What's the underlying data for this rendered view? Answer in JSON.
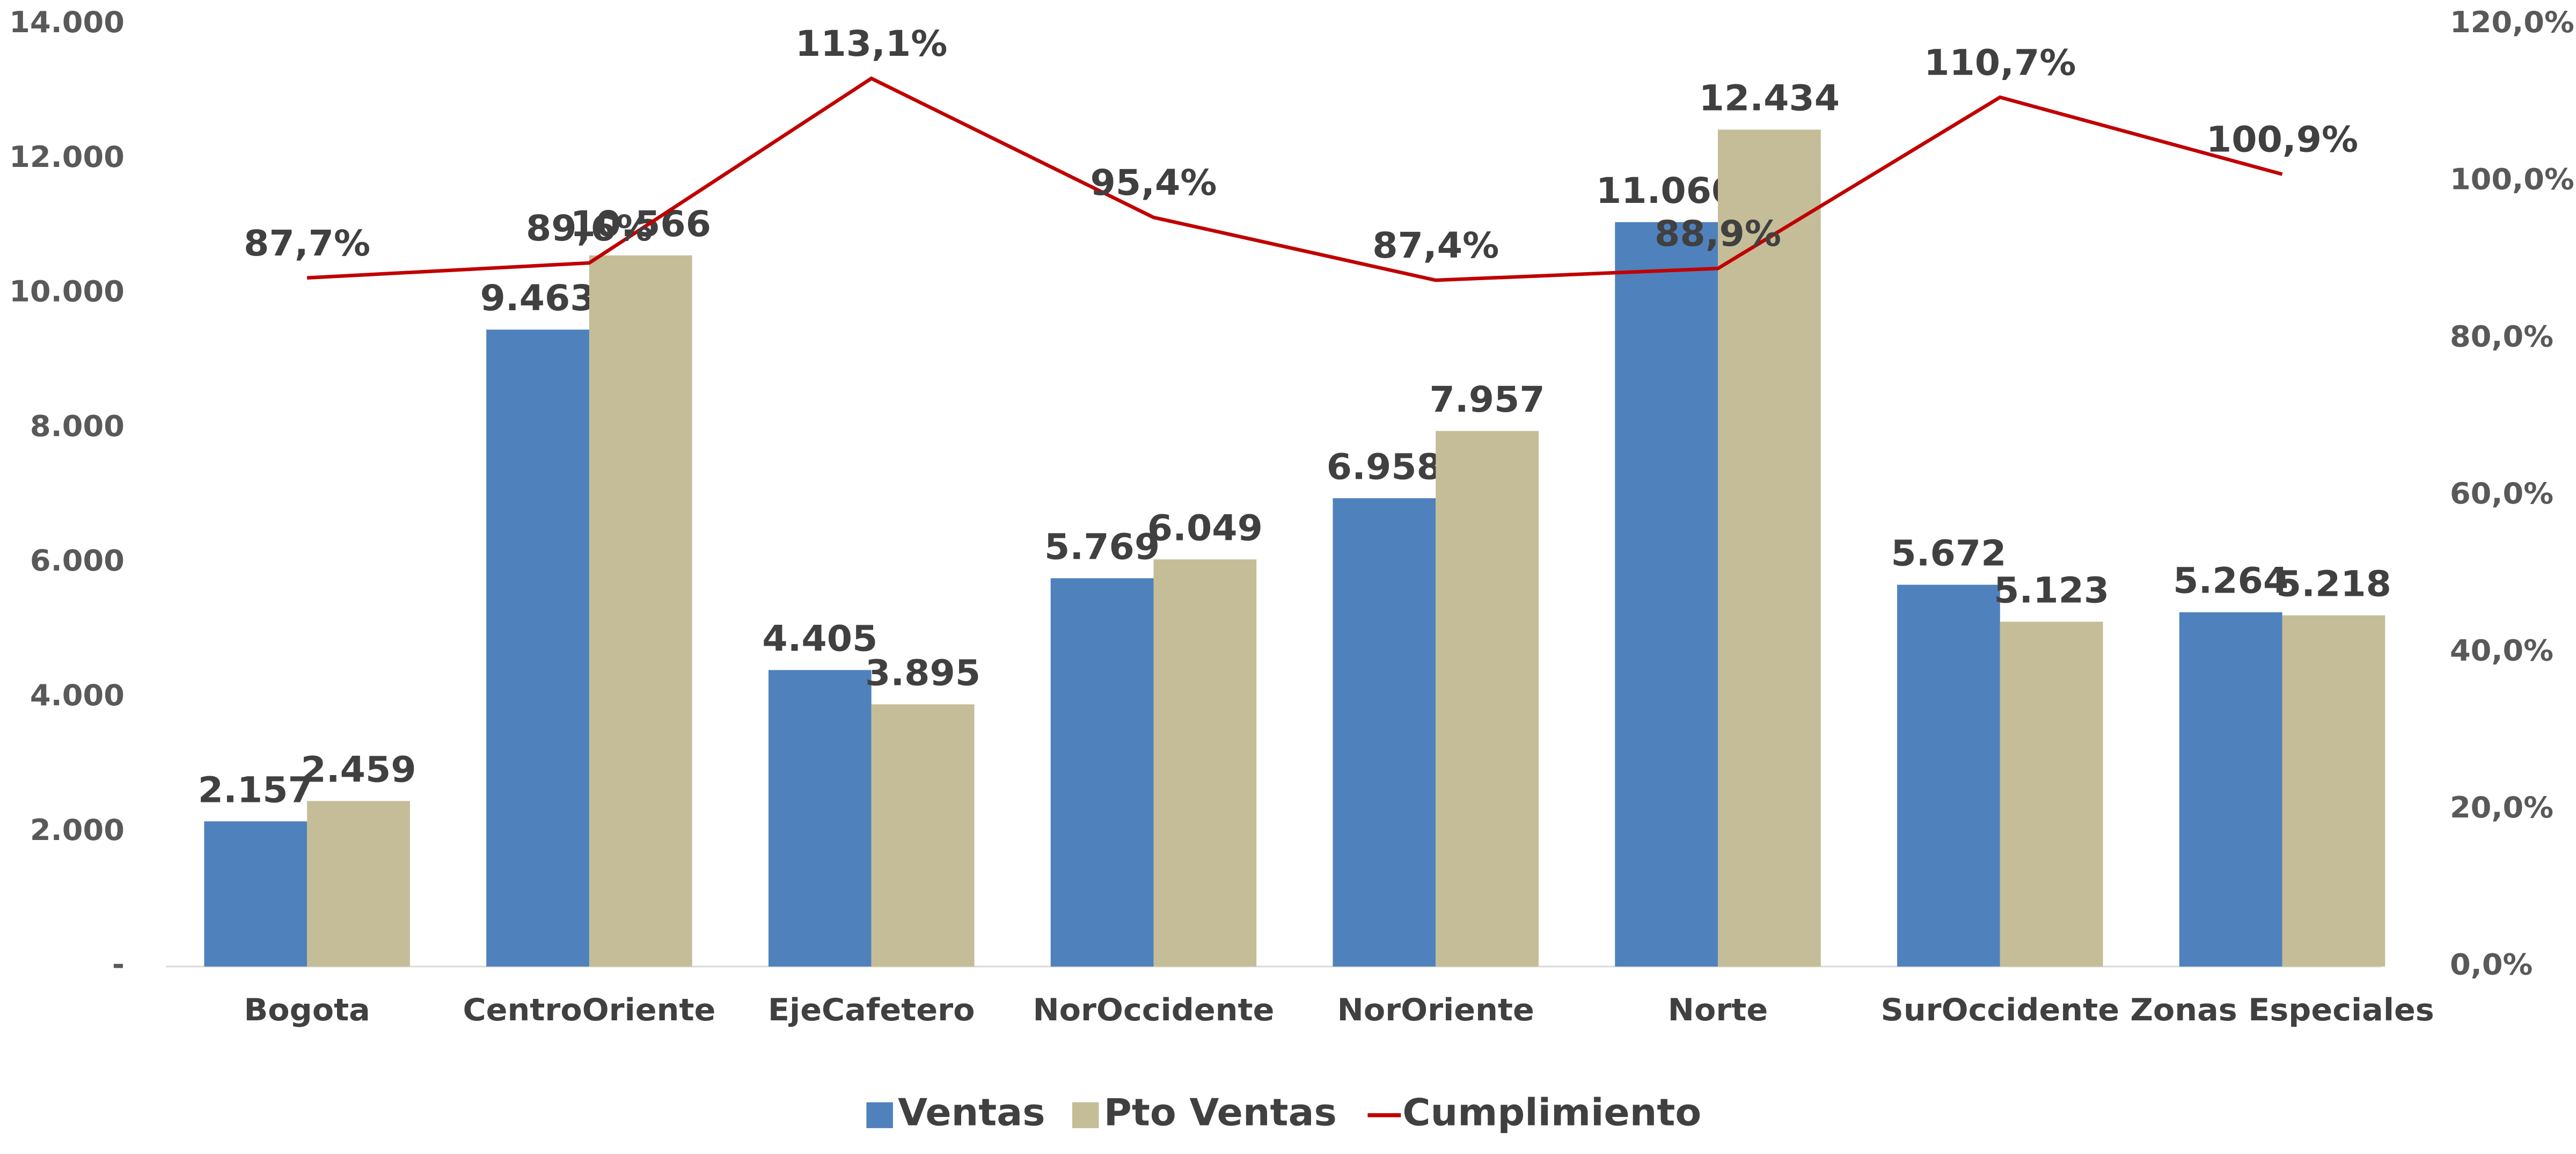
{
  "chart_data": {
    "type": "bar_line",
    "categories": [
      "Bogota",
      "CentroOriente",
      "EjeCafetero",
      "NorOccidente",
      "NorOriente",
      "Norte",
      "SurOccidente",
      "Zonas Especiales"
    ],
    "series": [
      {
        "name": "Ventas",
        "color": "#4f81bd",
        "type": "bar",
        "values": [
          2157,
          9463,
          4405,
          5769,
          6958,
          11060,
          5672,
          5264
        ],
        "value_labels": [
          "2.157",
          "9.463",
          "4.405",
          "5.769",
          "6.958",
          "11.060",
          "5.672",
          "5.264"
        ]
      },
      {
        "name": "Pto Ventas",
        "color": "#c4bd97",
        "type": "bar",
        "values": [
          2459,
          10566,
          3895,
          6049,
          7957,
          12434,
          5123,
          5218
        ],
        "value_labels": [
          "2.459",
          "10.566",
          "3.895",
          "6.049",
          "7.957",
          "12.434",
          "5.123",
          "5.218"
        ]
      },
      {
        "name": "Cumplimiento",
        "color": "#c00000",
        "type": "line",
        "axis": "y2",
        "values": [
          87.7,
          89.6,
          113.1,
          95.4,
          87.4,
          88.9,
          110.7,
          100.9
        ],
        "value_labels": [
          "87,7%",
          "89,6%",
          "113,1%",
          "95,4%",
          "87,4%",
          "88,9%",
          "110,7%",
          "100,9%"
        ]
      }
    ],
    "ylim": [
      0,
      14000
    ],
    "yticks": [
      {
        "value": 0,
        "label": "-"
      },
      {
        "value": 2000,
        "label": "2.000"
      },
      {
        "value": 4000,
        "label": "4.000"
      },
      {
        "value": 6000,
        "label": "6.000"
      },
      {
        "value": 8000,
        "label": "8.000"
      },
      {
        "value": 10000,
        "label": "10.000"
      },
      {
        "value": 12000,
        "label": "12.000"
      },
      {
        "value": 14000,
        "label": "14.000"
      }
    ],
    "y2lim": [
      0,
      120
    ],
    "y2ticks": [
      {
        "value": 0,
        "label": "0,0%"
      },
      {
        "value": 20,
        "label": "20,0%"
      },
      {
        "value": 40,
        "label": "40,0%"
      },
      {
        "value": 60,
        "label": "60,0%"
      },
      {
        "value": 80,
        "label": "80,0%"
      },
      {
        "value": 100,
        "label": "100,0%"
      },
      {
        "value": 120,
        "label": "120,0%"
      }
    ],
    "legend": "bottom"
  }
}
